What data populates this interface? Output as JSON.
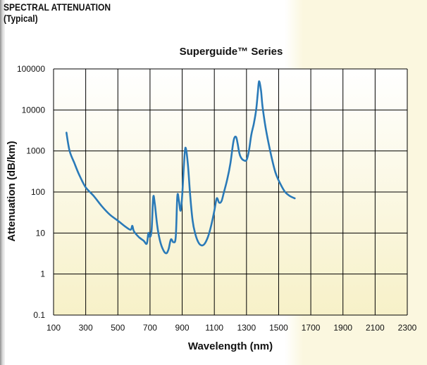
{
  "header": {
    "line1": "SPECTRAL ATTENUATION",
    "line2": "(Typical)"
  },
  "colors": {
    "curve": "#2a7ab8",
    "grid": "#000000",
    "plot_top": "#ffffff",
    "plot_bottom": "#f7f1c8"
  },
  "chart_data": {
    "type": "line",
    "title": "Superguide™ Series",
    "xlabel": "Wavelength (nm)",
    "ylabel": "Attenuation (dB/km)",
    "xlim": [
      100,
      2300
    ],
    "ylim": [
      0.1,
      100000
    ],
    "yscale": "log",
    "grid": true,
    "x_ticks": [
      100,
      300,
      500,
      700,
      900,
      1100,
      1300,
      1500,
      1700,
      1900,
      2100,
      2300
    ],
    "y_ticks": [
      0.1,
      1,
      10,
      100,
      1000,
      10000,
      100000
    ],
    "x_tick_labels": [
      "100",
      "300",
      "500",
      "700",
      "900",
      "1100",
      "1300",
      "1500",
      "1700",
      "1900",
      "2100",
      "2300"
    ],
    "y_tick_labels": [
      "0.1",
      "1",
      "10",
      "100",
      "1000",
      "10000",
      "100000"
    ],
    "series": [
      {
        "x": [
          180,
          200,
          230,
          260,
          300,
          350,
          400,
          450,
          500,
          550,
          580,
          590,
          600,
          630,
          660,
          680,
          690,
          700,
          710,
          720,
          730,
          745,
          760,
          780,
          800,
          815,
          830,
          845,
          860,
          870,
          880,
          890,
          900,
          910,
          920,
          935,
          950,
          965,
          980,
          1000,
          1020,
          1040,
          1060,
          1080,
          1100,
          1115,
          1130,
          1145,
          1160,
          1180,
          1200,
          1220,
          1235,
          1245,
          1255,
          1265,
          1280,
          1300,
          1315,
          1330,
          1345,
          1360,
          1370,
          1378,
          1390,
          1400,
          1420,
          1450,
          1480,
          1510,
          1540,
          1570,
          1600
        ],
        "y": [
          2800,
          1000,
          500,
          260,
          130,
          80,
          45,
          28,
          20,
          14,
          12,
          15,
          11,
          8,
          6.5,
          5.5,
          10,
          8,
          12,
          75,
          50,
          15,
          7,
          4,
          3.2,
          4,
          7,
          6,
          8,
          80,
          60,
          35,
          80,
          400,
          1200,
          500,
          80,
          20,
          10,
          6,
          5,
          5.5,
          8,
          15,
          35,
          70,
          55,
          60,
          100,
          200,
          500,
          1800,
          2200,
          1500,
          900,
          700,
          600,
          600,
          1000,
          2500,
          4500,
          10000,
          25000,
          50000,
          30000,
          12000,
          3500,
          900,
          300,
          160,
          100,
          80,
          70
        ]
      }
    ]
  }
}
